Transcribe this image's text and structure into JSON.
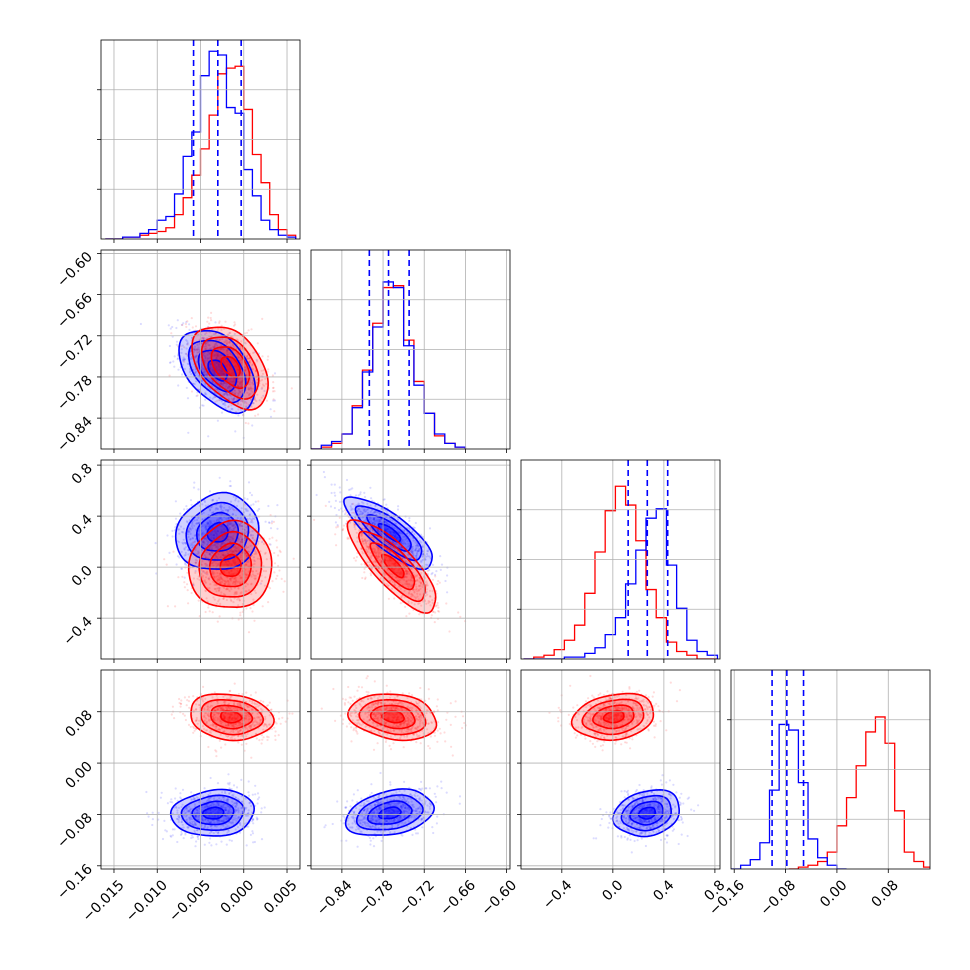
{
  "chart_data": {
    "type": "corner",
    "colors": {
      "series_a": "#0000ff",
      "series_b": "#ff0000",
      "grid": "#b0b0b0"
    },
    "grid": true,
    "series": [
      {
        "color": "#0000ff",
        "means": [
          -0.003,
          -0.77,
          0.26,
          -0.078
        ]
      },
      {
        "color": "#ff0000",
        "means": [
          -0.0015,
          -0.765,
          0.01,
          0.072
        ]
      }
    ],
    "params": [
      {
        "range": [
          -0.0165,
          0.0065
        ],
        "ticks": [
          -0.015,
          -0.01,
          -0.005,
          0.0,
          0.005
        ],
        "tick_labels": [
          "−0.015",
          "−0.010",
          "−0.005",
          "0.000",
          "0.005"
        ],
        "hist_max": 1.0,
        "quantiles_a": [
          -0.0058,
          -0.003,
          -0.0003
        ],
        "hist_a": [
          [
            -0.0155,
            0.0
          ],
          [
            -0.0145,
            0.0
          ],
          [
            -0.0135,
            0.01
          ],
          [
            -0.0125,
            0.01
          ],
          [
            -0.0115,
            0.03
          ],
          [
            -0.0105,
            0.05
          ],
          [
            -0.0095,
            0.1
          ],
          [
            -0.0085,
            0.12
          ],
          [
            -0.0075,
            0.24
          ],
          [
            -0.0065,
            0.44
          ],
          [
            -0.0055,
            0.57
          ],
          [
            -0.0045,
            0.87
          ],
          [
            -0.0035,
            1.0
          ],
          [
            -0.0025,
            0.98
          ],
          [
            -0.0015,
            0.7
          ],
          [
            -0.0005,
            0.67
          ],
          [
            0.0005,
            0.37
          ],
          [
            0.0015,
            0.23
          ],
          [
            0.0025,
            0.1
          ],
          [
            0.0035,
            0.05
          ],
          [
            0.0045,
            0.02
          ],
          [
            0.0055,
            0.01
          ]
        ],
        "hist_b": [
          [
            -0.0155,
            0.0
          ],
          [
            -0.0145,
            0.0
          ],
          [
            -0.0135,
            0.01
          ],
          [
            -0.0125,
            0.01
          ],
          [
            -0.0115,
            0.02
          ],
          [
            -0.0105,
            0.03
          ],
          [
            -0.0095,
            0.04
          ],
          [
            -0.0085,
            0.06
          ],
          [
            -0.0075,
            0.13
          ],
          [
            -0.0065,
            0.22
          ],
          [
            -0.0055,
            0.34
          ],
          [
            -0.0045,
            0.48
          ],
          [
            -0.0035,
            0.66
          ],
          [
            -0.0025,
            0.88
          ],
          [
            -0.0015,
            0.91
          ],
          [
            -0.0005,
            0.92
          ],
          [
            0.0005,
            0.69
          ],
          [
            0.0015,
            0.45
          ],
          [
            0.0025,
            0.3
          ],
          [
            0.0035,
            0.13
          ],
          [
            0.0045,
            0.05
          ],
          [
            0.0055,
            0.02
          ]
        ]
      },
      {
        "range": [
          -0.885,
          -0.595
        ],
        "ticks": [
          -0.84,
          -0.78,
          -0.72,
          -0.66,
          -0.6
        ],
        "tick_labels": [
          "−0.84",
          "−0.78",
          "−0.72",
          "−0.66",
          "−0.60"
        ],
        "hist_max": 1.0,
        "quantiles_a": [
          -0.8,
          -0.772,
          -0.742
        ],
        "hist_a": [
          [
            -0.8775,
            0.0
          ],
          [
            -0.8625,
            0.02
          ],
          [
            -0.8475,
            0.04
          ],
          [
            -0.8325,
            0.08
          ],
          [
            -0.8175,
            0.22
          ],
          [
            -0.8025,
            0.41
          ],
          [
            -0.7875,
            0.65
          ],
          [
            -0.7725,
            0.89
          ],
          [
            -0.7575,
            0.86
          ],
          [
            -0.7425,
            0.55
          ],
          [
            -0.7275,
            0.34
          ],
          [
            -0.7125,
            0.19
          ],
          [
            -0.6975,
            0.08
          ],
          [
            -0.6825,
            0.03
          ],
          [
            -0.6675,
            0.01
          ]
        ],
        "hist_b": [
          [
            -0.8775,
            0.0
          ],
          [
            -0.8625,
            0.01
          ],
          [
            -0.8475,
            0.03
          ],
          [
            -0.8325,
            0.08
          ],
          [
            -0.8175,
            0.23
          ],
          [
            -0.8025,
            0.42
          ],
          [
            -0.7875,
            0.67
          ],
          [
            -0.7725,
            0.86
          ],
          [
            -0.7575,
            0.87
          ],
          [
            -0.7425,
            0.58
          ],
          [
            -0.7275,
            0.36
          ],
          [
            -0.7125,
            0.19
          ],
          [
            -0.6975,
            0.07
          ],
          [
            -0.6825,
            0.03
          ],
          [
            -0.6675,
            0.01
          ]
        ]
      },
      {
        "range": [
          -0.72,
          0.84
        ],
        "ticks": [
          -0.4,
          0.0,
          0.4,
          0.8
        ],
        "tick_labels": [
          "−0.4",
          "0.0",
          "0.4",
          "0.8"
        ],
        "hist_max": 1.0,
        "quantiles_a": [
          0.12,
          0.27,
          0.43
        ],
        "hist_a": [
          [
            -0.66,
            0.0
          ],
          [
            -0.58,
            0.0
          ],
          [
            -0.5,
            0.0
          ],
          [
            -0.42,
            0.0
          ],
          [
            -0.34,
            0.01
          ],
          [
            -0.26,
            0.01
          ],
          [
            -0.18,
            0.03
          ],
          [
            -0.1,
            0.06
          ],
          [
            -0.02,
            0.13
          ],
          [
            0.06,
            0.22
          ],
          [
            0.14,
            0.4
          ],
          [
            0.22,
            0.58
          ],
          [
            0.3,
            0.75
          ],
          [
            0.38,
            0.8
          ],
          [
            0.46,
            0.5
          ],
          [
            0.54,
            0.27
          ],
          [
            0.62,
            0.1
          ],
          [
            0.7,
            0.04
          ],
          [
            0.78,
            0.02
          ]
        ],
        "hist_b": [
          [
            -0.66,
            0.0
          ],
          [
            -0.58,
            0.01
          ],
          [
            -0.5,
            0.02
          ],
          [
            -0.42,
            0.05
          ],
          [
            -0.34,
            0.1
          ],
          [
            -0.26,
            0.18
          ],
          [
            -0.18,
            0.35
          ],
          [
            -0.1,
            0.57
          ],
          [
            -0.02,
            0.79
          ],
          [
            0.06,
            0.92
          ],
          [
            0.14,
            0.82
          ],
          [
            0.22,
            0.63
          ],
          [
            0.3,
            0.37
          ],
          [
            0.38,
            0.22
          ],
          [
            0.46,
            0.09
          ],
          [
            0.54,
            0.04
          ],
          [
            0.62,
            0.02
          ],
          [
            0.7,
            0.0
          ],
          [
            0.78,
            0.0
          ]
        ]
      },
      {
        "range": [
          -0.165,
          0.145
        ],
        "ticks": [
          -0.16,
          -0.08,
          0.0,
          0.08
        ],
        "tick_labels": [
          "−0.16",
          "−0.08",
          "0.00",
          "0.08"
        ],
        "hist_max": 1.0,
        "quantiles_a": [
          -0.101,
          -0.078,
          -0.052
        ],
        "hist_a": [
          [
            -0.1575,
            0.0
          ],
          [
            -0.1425,
            0.02
          ],
          [
            -0.1275,
            0.05
          ],
          [
            -0.1125,
            0.14
          ],
          [
            -0.0975,
            0.42
          ],
          [
            -0.0825,
            0.77
          ],
          [
            -0.0675,
            0.74
          ],
          [
            -0.0525,
            0.46
          ],
          [
            -0.0375,
            0.16
          ],
          [
            -0.0225,
            0.06
          ],
          [
            -0.0075,
            0.02
          ],
          [
            0.0075,
            0.0
          ]
        ],
        "hist_b": [
          [
            -0.0675,
            0.0
          ],
          [
            -0.0525,
            0.01
          ],
          [
            -0.0375,
            0.02
          ],
          [
            -0.0225,
            0.04
          ],
          [
            -0.0075,
            0.09
          ],
          [
            0.0075,
            0.23
          ],
          [
            0.0225,
            0.38
          ],
          [
            0.0375,
            0.55
          ],
          [
            0.0525,
            0.73
          ],
          [
            0.0675,
            0.81
          ],
          [
            0.0825,
            0.67
          ],
          [
            0.0975,
            0.31
          ],
          [
            0.1125,
            0.09
          ],
          [
            0.1275,
            0.04
          ],
          [
            0.1425,
            0.01
          ]
        ]
      }
    ],
    "pairs": [
      {
        "i": 1,
        "j": 0,
        "a": {
          "mx": -0.003,
          "my": -0.77,
          "sx": 0.0022,
          "sy": 0.03,
          "rho": -0.45
        },
        "b": {
          "mx": -0.0015,
          "my": -0.765,
          "sx": 0.0022,
          "sy": 0.03,
          "rho": -0.45
        }
      },
      {
        "i": 2,
        "j": 0,
        "a": {
          "mx": -0.003,
          "my": 0.27,
          "sx": 0.0024,
          "sy": 0.15,
          "rho": 0.1
        },
        "b": {
          "mx": -0.0015,
          "my": 0.01,
          "sx": 0.0024,
          "sy": 0.17,
          "rho": 0.05
        }
      },
      {
        "i": 2,
        "j": 1,
        "a": {
          "mx": -0.77,
          "my": 0.27,
          "sx": 0.032,
          "sy": 0.14,
          "rho": -0.8
        },
        "b": {
          "mx": -0.765,
          "my": 0.01,
          "sx": 0.032,
          "sy": 0.18,
          "rho": -0.8
        }
      },
      {
        "i": 3,
        "j": 0,
        "a": {
          "mx": -0.0035,
          "my": -0.078,
          "sx": 0.0024,
          "sy": 0.018,
          "rho": 0.1
        },
        "b": {
          "mx": -0.0015,
          "my": 0.072,
          "sx": 0.0024,
          "sy": 0.018,
          "rho": -0.15
        }
      },
      {
        "i": 3,
        "j": 1,
        "a": {
          "mx": -0.77,
          "my": -0.078,
          "sx": 0.032,
          "sy": 0.018,
          "rho": 0.3
        },
        "b": {
          "mx": -0.765,
          "my": 0.072,
          "sx": 0.032,
          "sy": 0.018,
          "rho": -0.2
        }
      },
      {
        "i": 3,
        "j": 2,
        "a": {
          "mx": 0.27,
          "my": -0.078,
          "sx": 0.13,
          "sy": 0.018,
          "rho": 0.2
        },
        "b": {
          "mx": 0.01,
          "my": 0.072,
          "sx": 0.16,
          "sy": 0.018,
          "rho": 0.2
        }
      }
    ]
  }
}
